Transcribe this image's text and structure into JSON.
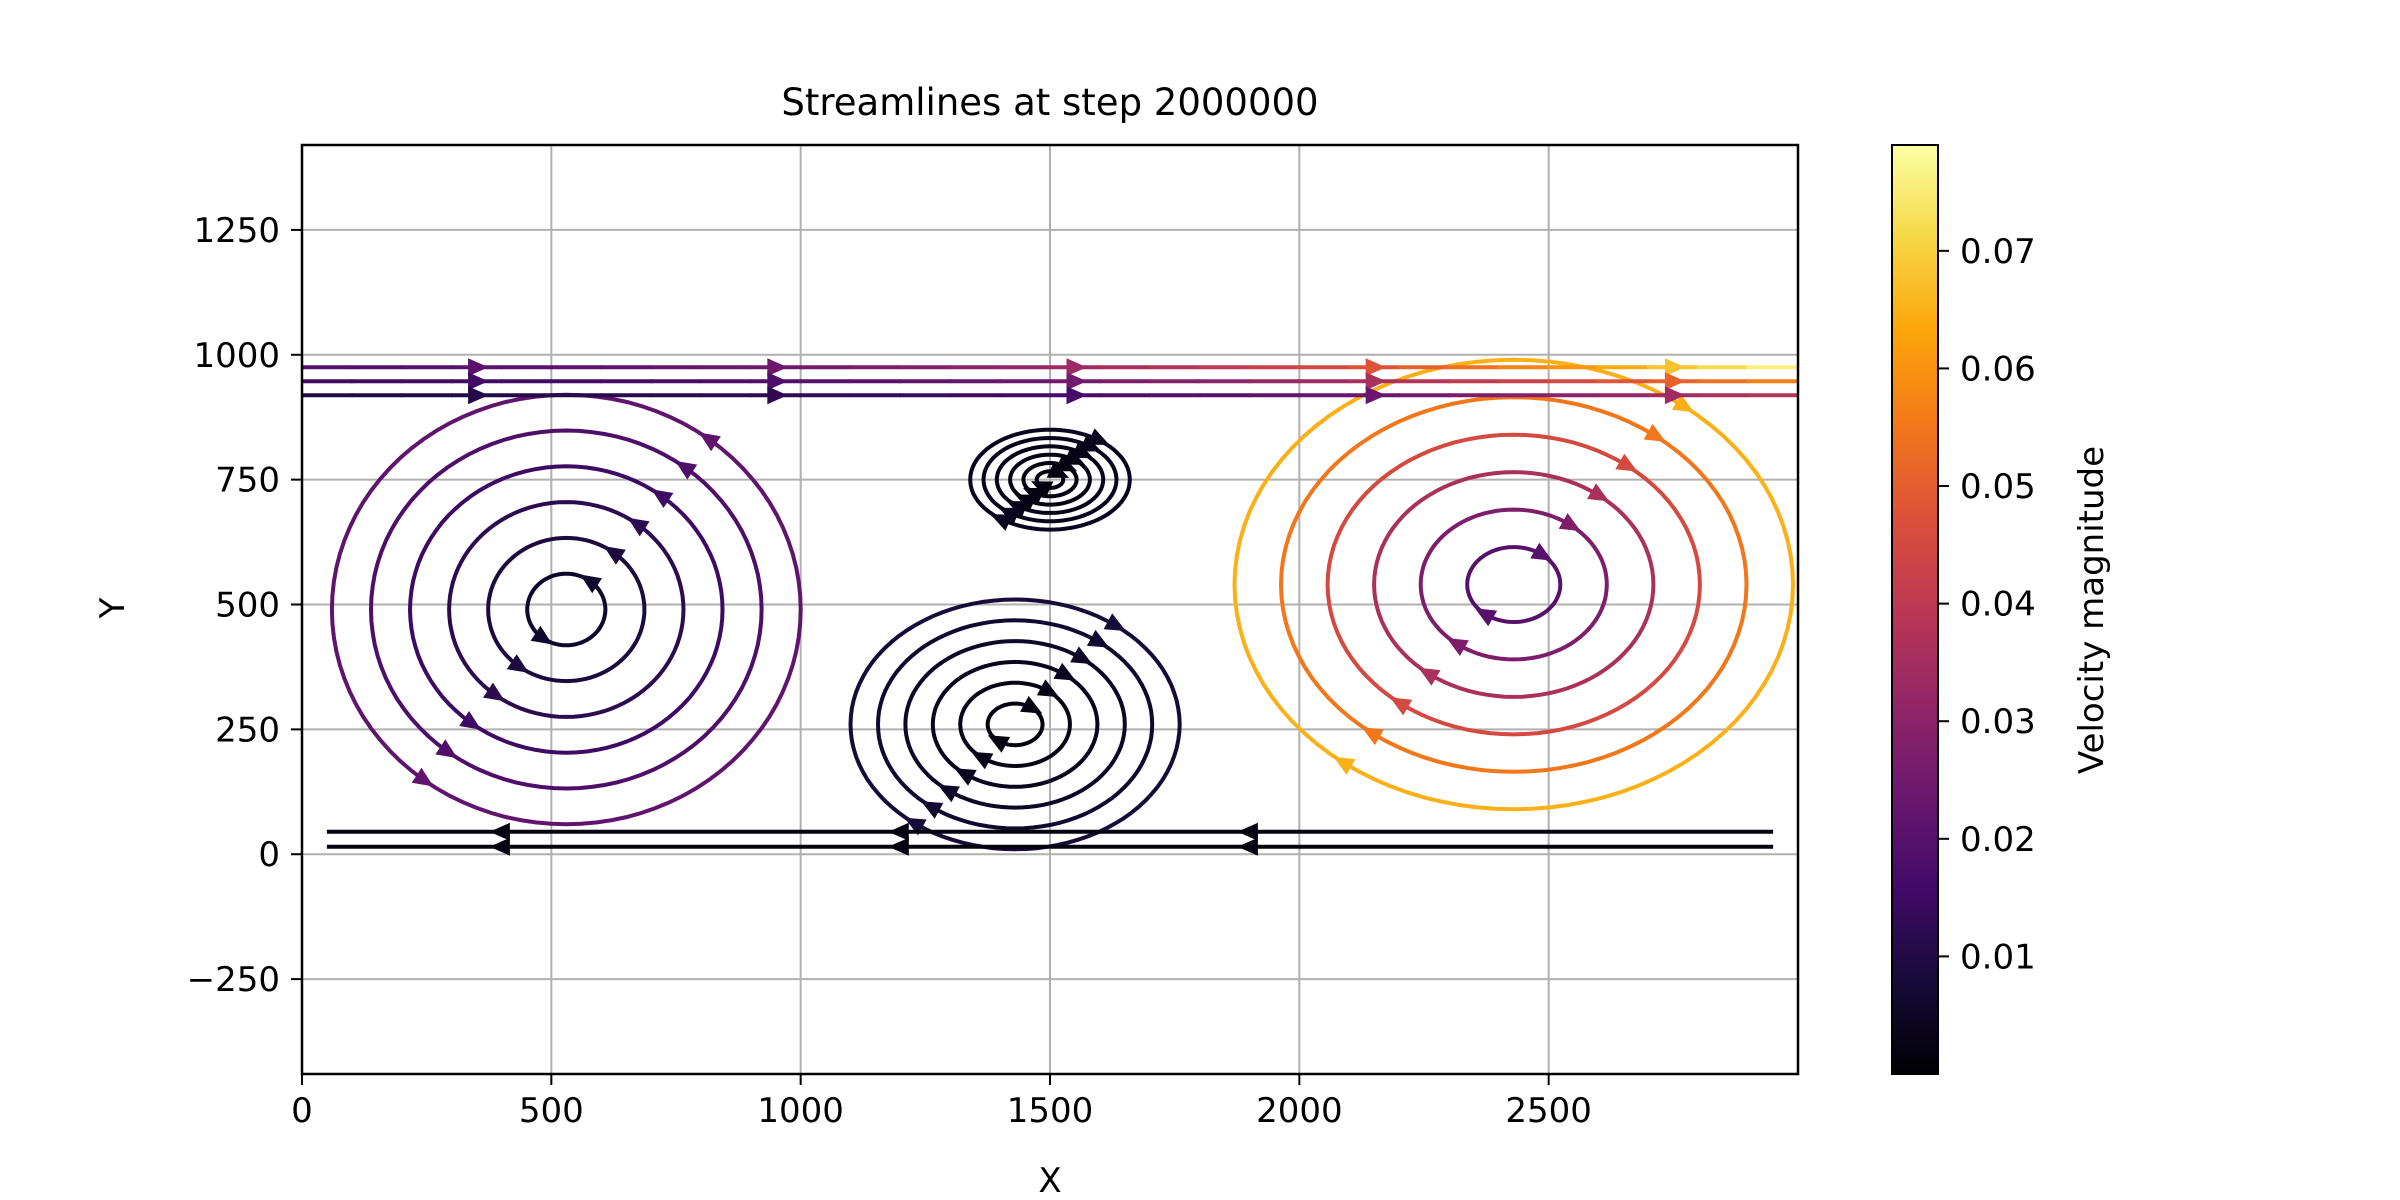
{
  "chart_data": {
    "type": "streamplot",
    "title": "Streamlines at step 2000000",
    "xlabel": "X",
    "ylabel": "Y",
    "xlim": [
      0,
      3000
    ],
    "ylim": [
      -440,
      1420
    ],
    "xticks": [
      0,
      500,
      1000,
      1500,
      2000,
      2500
    ],
    "yticks": [
      -250,
      0,
      250,
      500,
      750,
      1000,
      1250
    ],
    "xtick_labels": [
      "0",
      "500",
      "1000",
      "1500",
      "2000",
      "2500"
    ],
    "ytick_labels": [
      "−250",
      "0",
      "250",
      "500",
      "750",
      "1000",
      "1250"
    ],
    "grid": true,
    "domain": {
      "x": [
        0,
        3000
      ],
      "y": [
        0,
        1000
      ]
    },
    "colormap": "inferno",
    "colorbar": {
      "label": "Velocity magnitude",
      "range": [
        0.0,
        0.079
      ],
      "ticks": [
        0.01,
        0.02,
        0.03,
        0.04,
        0.05,
        0.06,
        0.07
      ],
      "tick_labels": [
        "0.01",
        "0.02",
        "0.03",
        "0.04",
        "0.05",
        "0.06",
        "0.07"
      ]
    },
    "vortices": [
      {
        "name": "left",
        "center": [
          530,
          490
        ],
        "rx": 470,
        "ry": 430,
        "direction": "counterclockwise",
        "v_min": 0.004,
        "v_max": 0.022
      },
      {
        "name": "middle",
        "center": [
          1430,
          260
        ],
        "rx": 330,
        "ry": 250,
        "direction": "clockwise",
        "v_min": 0.001,
        "v_max": 0.008
      },
      {
        "name": "upper-middle",
        "center": [
          1500,
          750
        ],
        "rx": 160,
        "ry": 100,
        "direction": "clockwise",
        "v_min": 0.001,
        "v_max": 0.004
      },
      {
        "name": "right",
        "center": [
          2430,
          540
        ],
        "rx": 560,
        "ry": 450,
        "direction": "clockwise",
        "v_min": 0.014,
        "v_max": 0.065
      }
    ],
    "top_boundary_flow": {
      "y": 975,
      "v_left": 0.02,
      "v_right": 0.078
    }
  }
}
